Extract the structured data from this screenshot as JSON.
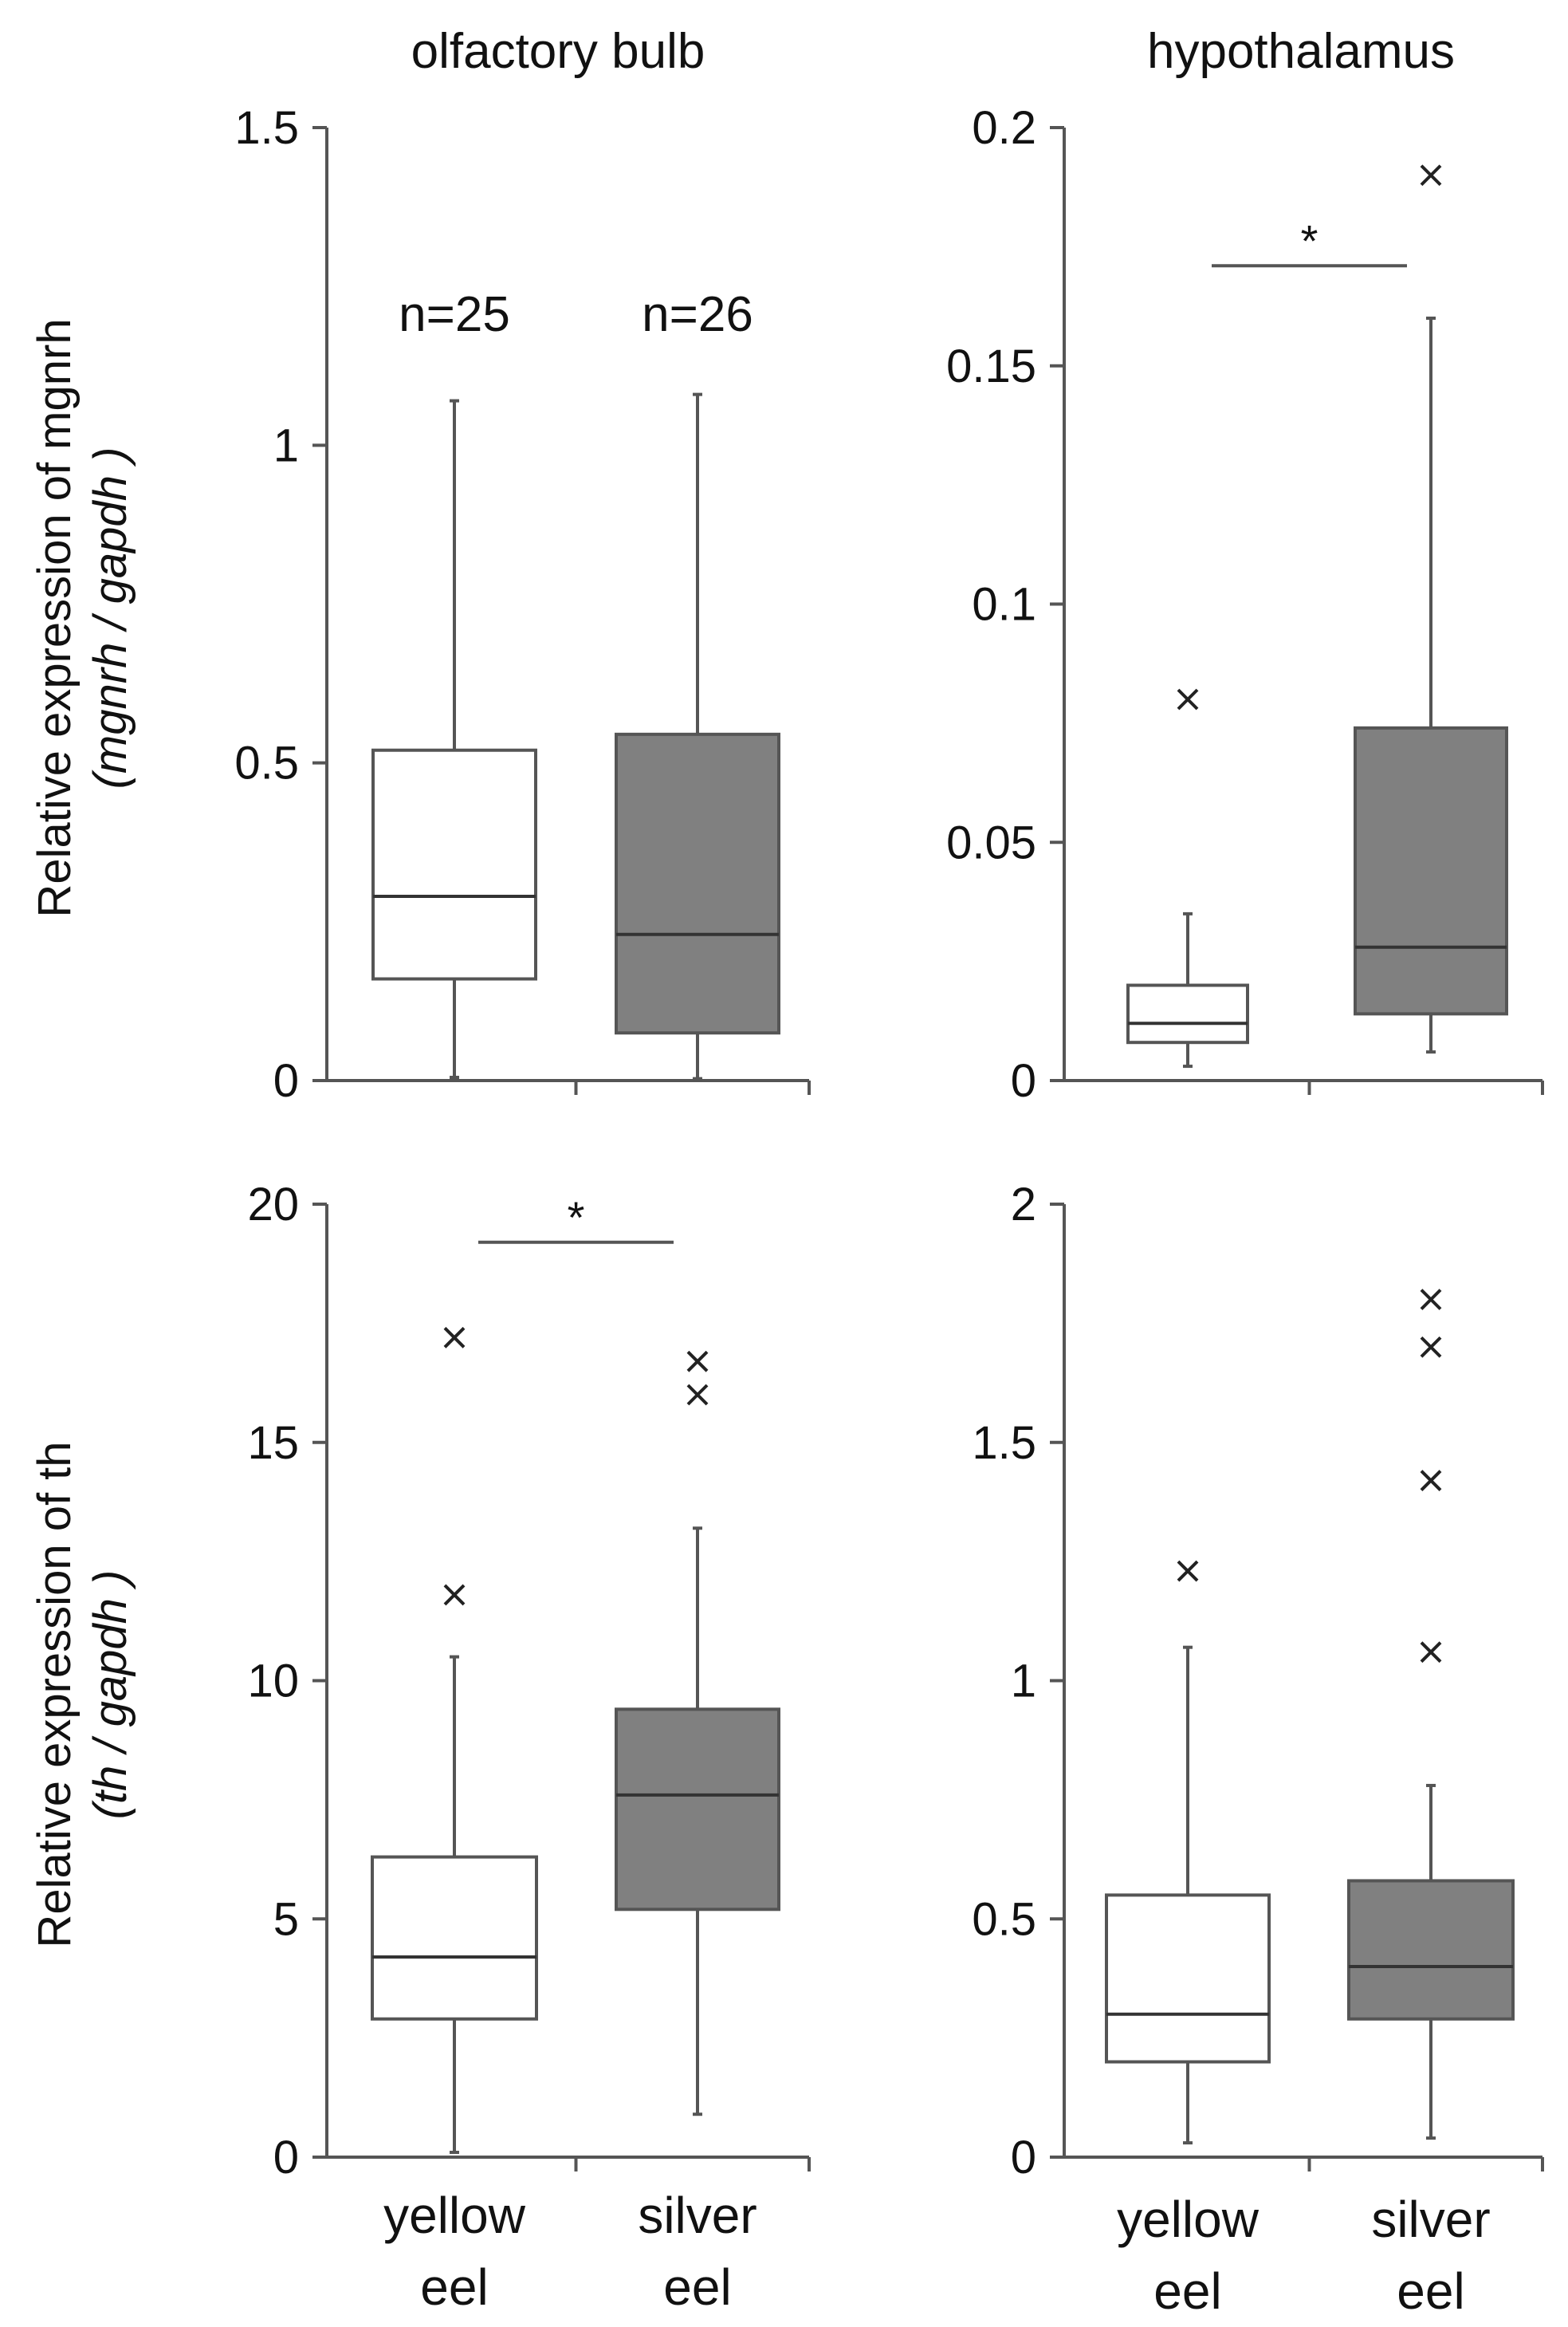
{
  "figure": {
    "columns": [
      "olfactory bulb",
      "hypothalamus"
    ],
    "row_ylabels": [
      {
        "line1": "Relative expression of mgnrh",
        "line2": "(mgnrh / gapdh )"
      },
      {
        "line1": "Relative expression of th",
        "line2": "(th / gapdh )"
      }
    ],
    "categories": [
      {
        "line1": "yellow",
        "line2": "eel"
      },
      {
        "line1": "silver",
        "line2": "eel"
      }
    ],
    "colors": {
      "yellow_box": "#ffffff",
      "silver_box": "#808080",
      "axis": "#555555"
    }
  },
  "chart_data": [
    {
      "type": "boxplot",
      "title": "olfactory bulb",
      "ylabel": "Relative expression of mgnrh (mgnrh / gapdh )",
      "ylim": [
        0,
        1.5
      ],
      "yticks": [
        0,
        0.5,
        1,
        1.5
      ],
      "ytick_labels": [
        "0",
        "0.5",
        "1",
        "1.5"
      ],
      "categories": [
        "yellow eel",
        "silver eel"
      ],
      "n_labels": [
        "n=25",
        "n=26"
      ],
      "boxes": [
        {
          "name": "yellow eel",
          "whislo": 0.005,
          "q1": 0.16,
          "median": 0.29,
          "q3": 0.52,
          "whishi": 1.07,
          "outliers": []
        },
        {
          "name": "silver eel",
          "whislo": 0.003,
          "q1": 0.075,
          "median": 0.23,
          "q3": 0.545,
          "whishi": 1.08,
          "outliers": []
        }
      ],
      "significance": null
    },
    {
      "type": "boxplot",
      "title": "hypothalamus",
      "ylabel": "Relative expression of mgnrh (mgnrh / gapdh )",
      "ylim": [
        0,
        0.2
      ],
      "yticks": [
        0,
        0.05,
        0.1,
        0.15,
        0.2
      ],
      "ytick_labels": [
        "0",
        "0.05",
        "0.1",
        "0.15",
        "0.2"
      ],
      "categories": [
        "yellow eel",
        "silver eel"
      ],
      "boxes": [
        {
          "name": "yellow eel",
          "whislo": 0.003,
          "q1": 0.008,
          "median": 0.012,
          "q3": 0.02,
          "whishi": 0.035,
          "outliers": [
            0.08
          ]
        },
        {
          "name": "silver eel",
          "whislo": 0.006,
          "q1": 0.014,
          "median": 0.028,
          "q3": 0.074,
          "whishi": 0.16,
          "outliers": [
            0.19
          ]
        }
      ],
      "significance": {
        "label": "*",
        "y": 0.171
      }
    },
    {
      "type": "boxplot",
      "title": "",
      "ylabel": "Relative expression of th (th / gapdh )",
      "ylim": [
        0,
        20
      ],
      "yticks": [
        0,
        5,
        10,
        15,
        20
      ],
      "ytick_labels": [
        "0",
        "5",
        "10",
        "15",
        "20"
      ],
      "categories": [
        "yellow eel",
        "silver eel"
      ],
      "boxes": [
        {
          "name": "yellow eel",
          "whislo": 0.1,
          "q1": 2.9,
          "median": 4.2,
          "q3": 6.3,
          "whishi": 10.5,
          "outliers": [
            11.8,
            17.2
          ]
        },
        {
          "name": "silver eel",
          "whislo": 0.9,
          "q1": 5.2,
          "median": 7.6,
          "q3": 9.4,
          "whishi": 13.2,
          "outliers": [
            16.0,
            16.7
          ]
        }
      ],
      "significance": {
        "label": "*",
        "y": 19.2
      }
    },
    {
      "type": "boxplot",
      "title": "",
      "ylabel": "Relative expression of th (th / gapdh )",
      "ylim": [
        0,
        2
      ],
      "yticks": [
        0,
        0.5,
        1,
        1.5,
        2
      ],
      "ytick_labels": [
        "0",
        "0.5",
        "1",
        "1.5",
        "2"
      ],
      "categories": [
        "yellow eel",
        "silver eel"
      ],
      "boxes": [
        {
          "name": "yellow eel",
          "whislo": 0.03,
          "q1": 0.2,
          "median": 0.3,
          "q3": 0.55,
          "whishi": 1.07,
          "outliers": [
            1.23
          ]
        },
        {
          "name": "silver eel",
          "whislo": 0.04,
          "q1": 0.29,
          "median": 0.4,
          "q3": 0.58,
          "whishi": 0.78,
          "outliers": [
            1.06,
            1.42,
            1.7,
            1.8
          ]
        }
      ],
      "significance": null
    }
  ]
}
